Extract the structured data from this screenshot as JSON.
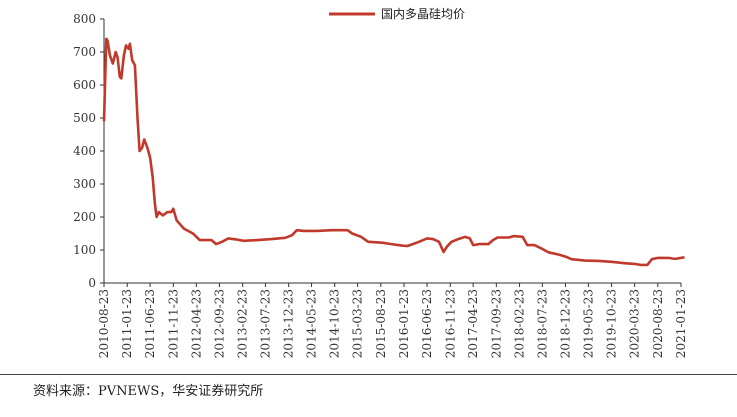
{
  "chart_data": {
    "type": "line",
    "ylim": [
      0,
      800
    ],
    "y_ticks": [
      "0",
      "100",
      "200",
      "300",
      "400",
      "500",
      "600",
      "700",
      "800"
    ],
    "x_ticks": [
      "2010-08-23",
      "2011-01-23",
      "2011-06-23",
      "2011-11-23",
      "2012-04-23",
      "2012-09-23",
      "2013-02-23",
      "2013-07-23",
      "2013-12-23",
      "2014-05-23",
      "2014-10-23",
      "2015-03-23",
      "2015-08-23",
      "2016-01-23",
      "2016-06-23",
      "2016-11-23",
      "2017-04-23",
      "2017-09-23",
      "2018-02-23",
      "2018-07-23",
      "2018-12-23",
      "2019-05-23",
      "2019-10-23",
      "2020-03-23",
      "2020-08-23",
      "2021-01-23"
    ],
    "legend_position": "top-right",
    "grid": false,
    "series": [
      {
        "name": "国内多晶硅均价",
        "color": "#c0392b",
        "points": [
          [
            "2010-08-23",
            490
          ],
          [
            "2010-08-30",
            610
          ],
          [
            "2010-09-07",
            740
          ],
          [
            "2010-09-15",
            735
          ],
          [
            "2010-10-01",
            690
          ],
          [
            "2010-10-20",
            665
          ],
          [
            "2010-11-08",
            700
          ],
          [
            "2010-11-20",
            685
          ],
          [
            "2010-12-05",
            625
          ],
          [
            "2010-12-15",
            620
          ],
          [
            "2011-01-01",
            690
          ],
          [
            "2011-01-15",
            720
          ],
          [
            "2011-02-01",
            710
          ],
          [
            "2011-02-10",
            725
          ],
          [
            "2011-02-25",
            675
          ],
          [
            "2011-03-15",
            660
          ],
          [
            "2011-04-01",
            500
          ],
          [
            "2011-04-15",
            400
          ],
          [
            "2011-05-01",
            410
          ],
          [
            "2011-05-15",
            435
          ],
          [
            "2011-06-05",
            410
          ],
          [
            "2011-06-23",
            380
          ],
          [
            "2011-07-10",
            320
          ],
          [
            "2011-07-25",
            240
          ],
          [
            "2011-08-05",
            200
          ],
          [
            "2011-08-20",
            215
          ],
          [
            "2011-09-15",
            205
          ],
          [
            "2011-10-15",
            215
          ],
          [
            "2011-11-10",
            215
          ],
          [
            "2011-11-23",
            225
          ],
          [
            "2011-12-15",
            190
          ],
          [
            "2012-02-01",
            165
          ],
          [
            "2012-04-01",
            150
          ],
          [
            "2012-05-15",
            130
          ],
          [
            "2012-08-01",
            130
          ],
          [
            "2012-09-01",
            118
          ],
          [
            "2012-10-10",
            125
          ],
          [
            "2012-11-20",
            135
          ],
          [
            "2013-01-10",
            132
          ],
          [
            "2013-03-01",
            128
          ],
          [
            "2013-06-01",
            130
          ],
          [
            "2013-09-01",
            133
          ],
          [
            "2013-12-01",
            137
          ],
          [
            "2014-01-15",
            145
          ],
          [
            "2014-02-15",
            160
          ],
          [
            "2014-04-01",
            158
          ],
          [
            "2014-07-01",
            158
          ],
          [
            "2014-10-01",
            160
          ],
          [
            "2015-01-15",
            160
          ],
          [
            "2015-02-15",
            150
          ],
          [
            "2015-04-15",
            140
          ],
          [
            "2015-06-01",
            125
          ],
          [
            "2015-09-01",
            122
          ],
          [
            "2015-11-01",
            118
          ],
          [
            "2016-01-15",
            113
          ],
          [
            "2016-02-15",
            112
          ],
          [
            "2016-03-20",
            118
          ],
          [
            "2016-05-01",
            125
          ],
          [
            "2016-06-23",
            135
          ],
          [
            "2016-08-01",
            133
          ],
          [
            "2016-09-10",
            125
          ],
          [
            "2016-10-10",
            94
          ],
          [
            "2016-11-01",
            110
          ],
          [
            "2016-12-01",
            125
          ],
          [
            "2017-01-15",
            133
          ],
          [
            "2017-03-01",
            140
          ],
          [
            "2017-04-01",
            135
          ],
          [
            "2017-04-23",
            115
          ],
          [
            "2017-06-01",
            118
          ],
          [
            "2017-08-01",
            118
          ],
          [
            "2017-09-01",
            130
          ],
          [
            "2017-10-01",
            138
          ],
          [
            "2017-12-15",
            138
          ],
          [
            "2018-01-15",
            142
          ],
          [
            "2018-03-15",
            140
          ],
          [
            "2018-04-15",
            115
          ],
          [
            "2018-06-01",
            115
          ],
          [
            "2018-07-15",
            105
          ],
          [
            "2018-09-01",
            93
          ],
          [
            "2018-11-01",
            87
          ],
          [
            "2018-12-23",
            80
          ],
          [
            "2019-02-01",
            72
          ],
          [
            "2019-05-01",
            68
          ],
          [
            "2019-08-01",
            67
          ],
          [
            "2019-11-01",
            64
          ],
          [
            "2020-01-15",
            60
          ],
          [
            "2020-03-23",
            58
          ],
          [
            "2020-05-01",
            55
          ],
          [
            "2020-06-15",
            55
          ],
          [
            "2020-07-15",
            72
          ],
          [
            "2020-08-23",
            76
          ],
          [
            "2020-11-01",
            76
          ],
          [
            "2020-12-15",
            73
          ],
          [
            "2021-02-15",
            78
          ]
        ]
      }
    ]
  },
  "footer": {
    "source": "资料来源：PVNEWS，华安证券研究所"
  }
}
